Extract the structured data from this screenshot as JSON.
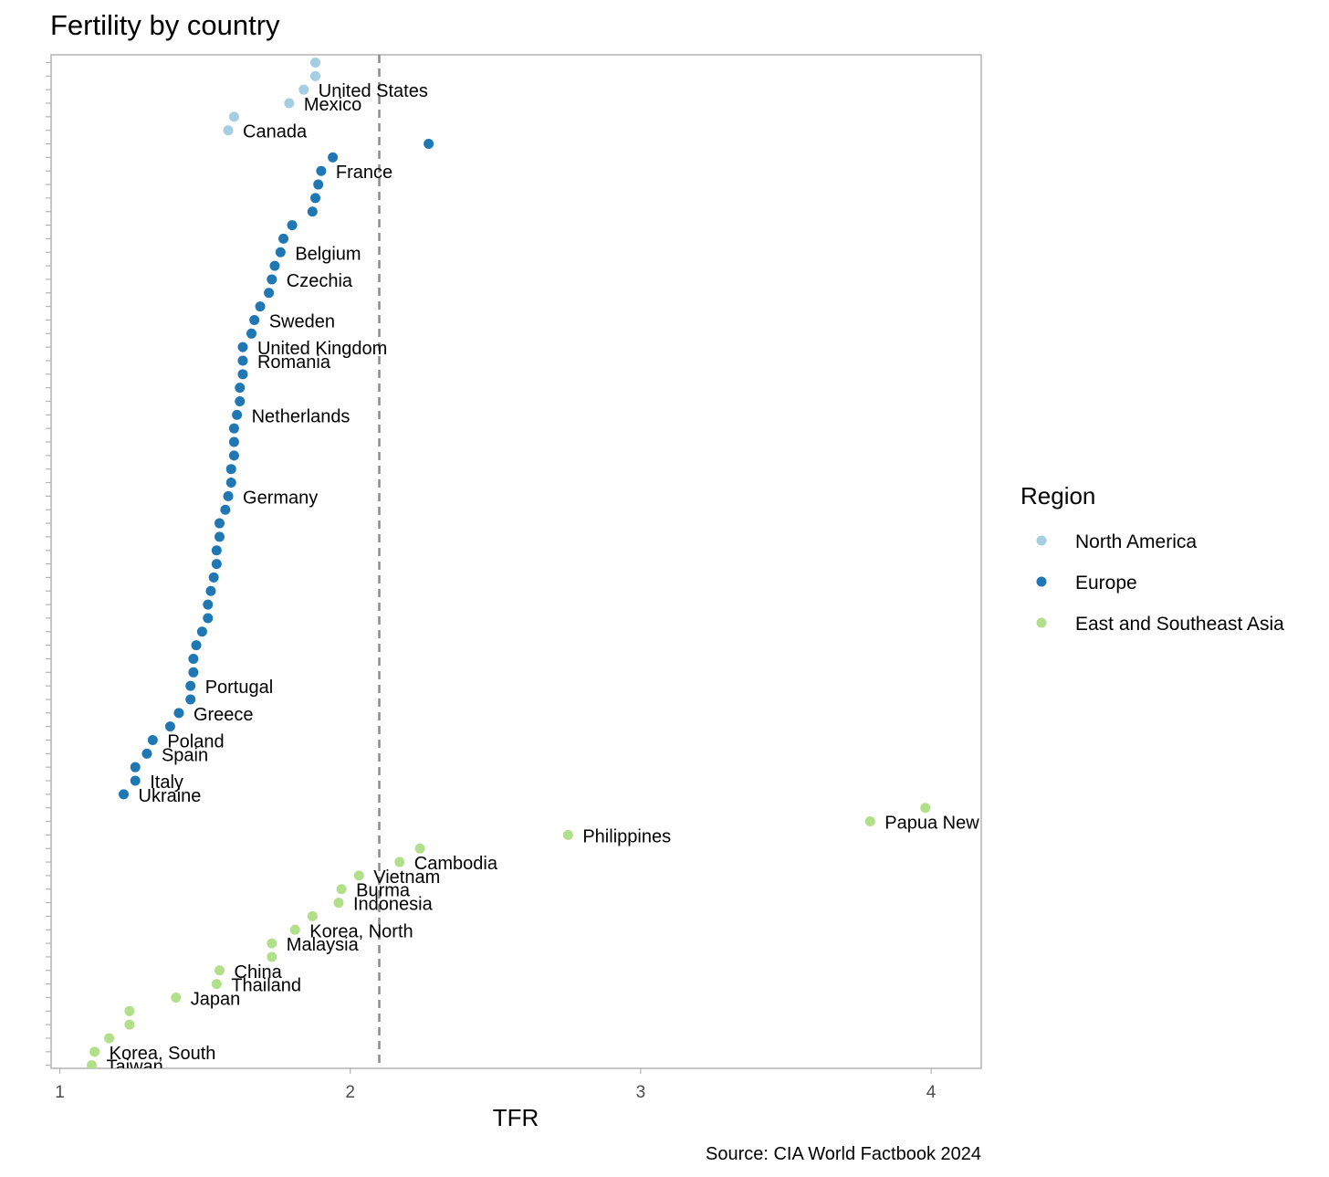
{
  "chart_data": {
    "type": "scatter",
    "title": "Fertility by country",
    "xlabel": "TFR",
    "ylabel": "",
    "xlim": [
      0.96,
      4.17
    ],
    "x_ticks": [
      1,
      2,
      3,
      4
    ],
    "reference_line": {
      "x": 2.1,
      "style": "dashed"
    },
    "caption": "Source: CIA World Factbook 2024",
    "legend_title": "Region",
    "legend_position": "right",
    "n_rows": 75,
    "series": [
      {
        "name": "North America",
        "color": "#a6cee3",
        "points": [
          {
            "rank": 1,
            "x": 1.88,
            "label": ""
          },
          {
            "rank": 2,
            "x": 1.88,
            "label": ""
          },
          {
            "rank": 3,
            "x": 1.84,
            "label": "United States"
          },
          {
            "rank": 4,
            "x": 1.79,
            "label": "Mexico"
          },
          {
            "rank": 5,
            "x": 1.6,
            "label": ""
          },
          {
            "rank": 6,
            "x": 1.58,
            "label": "Canada"
          }
        ]
      },
      {
        "name": "Europe",
        "color": "#1f78b4",
        "points": [
          {
            "rank": 7,
            "x": 2.27,
            "label": ""
          },
          {
            "rank": 8,
            "x": 1.94,
            "label": ""
          },
          {
            "rank": 9,
            "x": 1.9,
            "label": "France"
          },
          {
            "rank": 10,
            "x": 1.89,
            "label": ""
          },
          {
            "rank": 11,
            "x": 1.88,
            "label": ""
          },
          {
            "rank": 12,
            "x": 1.87,
            "label": ""
          },
          {
            "rank": 13,
            "x": 1.8,
            "label": ""
          },
          {
            "rank": 14,
            "x": 1.77,
            "label": ""
          },
          {
            "rank": 15,
            "x": 1.76,
            "label": "Belgium"
          },
          {
            "rank": 16,
            "x": 1.74,
            "label": ""
          },
          {
            "rank": 17,
            "x": 1.73,
            "label": "Czechia"
          },
          {
            "rank": 18,
            "x": 1.72,
            "label": ""
          },
          {
            "rank": 19,
            "x": 1.69,
            "label": ""
          },
          {
            "rank": 20,
            "x": 1.67,
            "label": "Sweden"
          },
          {
            "rank": 21,
            "x": 1.66,
            "label": ""
          },
          {
            "rank": 22,
            "x": 1.63,
            "label": "United Kingdom"
          },
          {
            "rank": 23,
            "x": 1.63,
            "label": "Romania"
          },
          {
            "rank": 24,
            "x": 1.63,
            "label": ""
          },
          {
            "rank": 25,
            "x": 1.62,
            "label": ""
          },
          {
            "rank": 26,
            "x": 1.62,
            "label": ""
          },
          {
            "rank": 27,
            "x": 1.61,
            "label": "Netherlands"
          },
          {
            "rank": 28,
            "x": 1.6,
            "label": ""
          },
          {
            "rank": 29,
            "x": 1.6,
            "label": ""
          },
          {
            "rank": 30,
            "x": 1.6,
            "label": ""
          },
          {
            "rank": 31,
            "x": 1.59,
            "label": ""
          },
          {
            "rank": 32,
            "x": 1.59,
            "label": ""
          },
          {
            "rank": 33,
            "x": 1.58,
            "label": "Germany"
          },
          {
            "rank": 34,
            "x": 1.57,
            "label": ""
          },
          {
            "rank": 35,
            "x": 1.55,
            "label": ""
          },
          {
            "rank": 36,
            "x": 1.55,
            "label": ""
          },
          {
            "rank": 37,
            "x": 1.54,
            "label": ""
          },
          {
            "rank": 38,
            "x": 1.54,
            "label": ""
          },
          {
            "rank": 39,
            "x": 1.53,
            "label": ""
          },
          {
            "rank": 40,
            "x": 1.52,
            "label": ""
          },
          {
            "rank": 41,
            "x": 1.51,
            "label": ""
          },
          {
            "rank": 42,
            "x": 1.51,
            "label": ""
          },
          {
            "rank": 43,
            "x": 1.49,
            "label": ""
          },
          {
            "rank": 44,
            "x": 1.47,
            "label": ""
          },
          {
            "rank": 45,
            "x": 1.46,
            "label": ""
          },
          {
            "rank": 46,
            "x": 1.46,
            "label": ""
          },
          {
            "rank": 47,
            "x": 1.45,
            "label": "Portugal"
          },
          {
            "rank": 48,
            "x": 1.45,
            "label": ""
          },
          {
            "rank": 49,
            "x": 1.41,
            "label": "Greece"
          },
          {
            "rank": 50,
            "x": 1.38,
            "label": ""
          },
          {
            "rank": 51,
            "x": 1.32,
            "label": "Poland"
          },
          {
            "rank": 52,
            "x": 1.3,
            "label": "Spain"
          },
          {
            "rank": 53,
            "x": 1.26,
            "label": ""
          },
          {
            "rank": 54,
            "x": 1.26,
            "label": "Italy"
          },
          {
            "rank": 55,
            "x": 1.22,
            "label": "Ukraine"
          }
        ]
      },
      {
        "name": "East and Southeast Asia",
        "color": "#b2df8a",
        "points": [
          {
            "rank": 56,
            "x": 3.98,
            "label": ""
          },
          {
            "rank": 57,
            "x": 3.79,
            "label": "Papua New"
          },
          {
            "rank": 58,
            "x": 2.75,
            "label": "Philippines"
          },
          {
            "rank": 59,
            "x": 2.24,
            "label": ""
          },
          {
            "rank": 60,
            "x": 2.17,
            "label": "Cambodia"
          },
          {
            "rank": 61,
            "x": 2.03,
            "label": "Vietnam"
          },
          {
            "rank": 62,
            "x": 1.97,
            "label": "Burma"
          },
          {
            "rank": 63,
            "x": 1.96,
            "label": "Indonesia"
          },
          {
            "rank": 64,
            "x": 1.87,
            "label": ""
          },
          {
            "rank": 65,
            "x": 1.81,
            "label": "Korea, North"
          },
          {
            "rank": 66,
            "x": 1.73,
            "label": "Malaysia"
          },
          {
            "rank": 67,
            "x": 1.73,
            "label": ""
          },
          {
            "rank": 68,
            "x": 1.55,
            "label": "China"
          },
          {
            "rank": 69,
            "x": 1.54,
            "label": "Thailand"
          },
          {
            "rank": 70,
            "x": 1.4,
            "label": "Japan"
          },
          {
            "rank": 71,
            "x": 1.24,
            "label": ""
          },
          {
            "rank": 72,
            "x": 1.24,
            "label": ""
          },
          {
            "rank": 73,
            "x": 1.17,
            "label": ""
          },
          {
            "rank": 74,
            "x": 1.12,
            "label": "Korea, South"
          },
          {
            "rank": 75,
            "x": 1.11,
            "label": "Taiwan"
          }
        ]
      }
    ]
  }
}
